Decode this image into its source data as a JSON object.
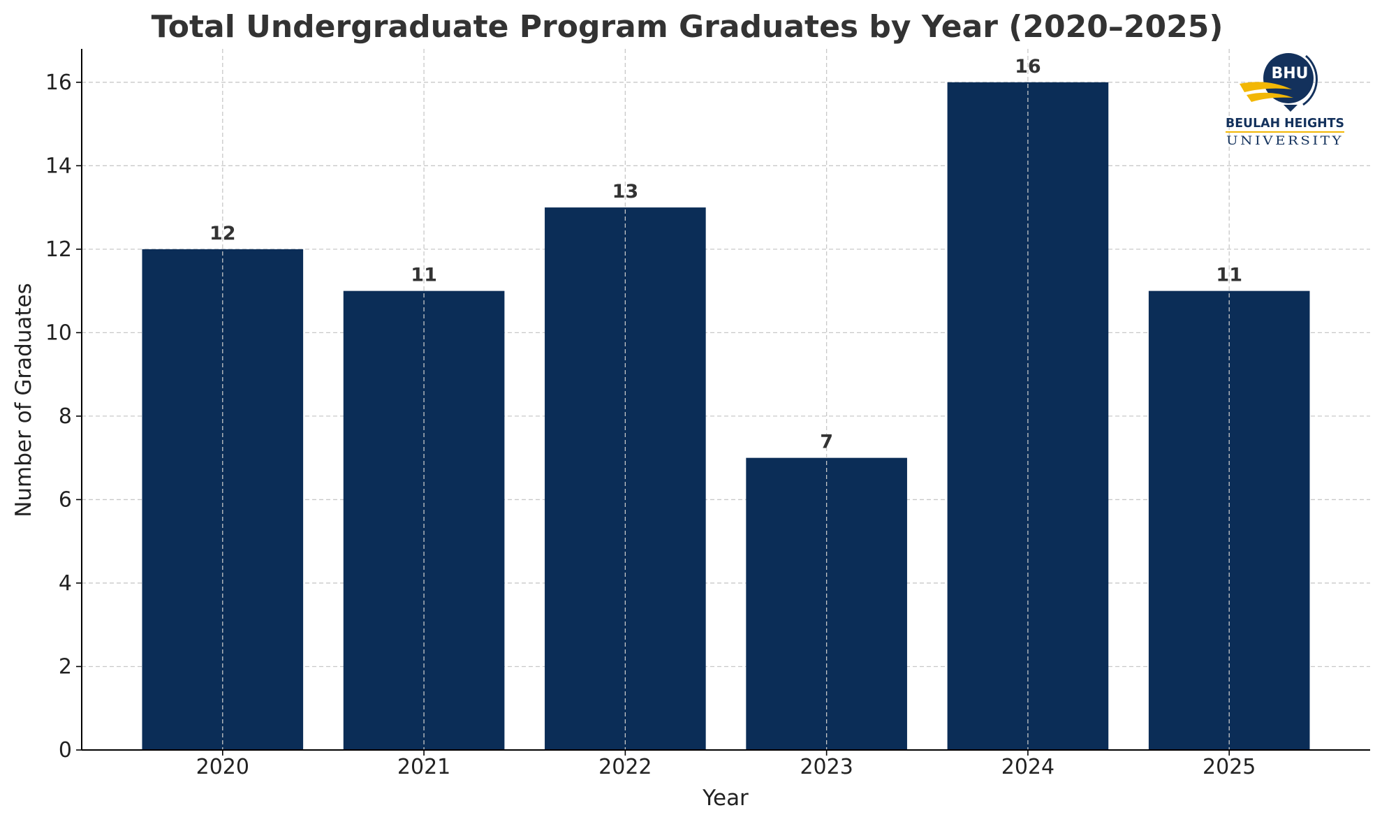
{
  "chart_data": {
    "type": "bar",
    "title": "Total Undergraduate Program Graduates by Year (2020–2025)",
    "xlabel": "Year",
    "ylabel": "Number of Graduates",
    "categories": [
      "2020",
      "2021",
      "2022",
      "2023",
      "2024",
      "2025"
    ],
    "values": [
      12,
      11,
      13,
      7,
      16,
      11
    ],
    "data_labels": [
      "12",
      "11",
      "13",
      "7",
      "16",
      "11"
    ],
    "ylim": [
      0,
      16.8
    ],
    "yticks": [
      0,
      2,
      4,
      6,
      8,
      10,
      12,
      14,
      16
    ],
    "grid": true,
    "bar_color": "#0b2d57"
  },
  "logo": {
    "abbr": "BHU",
    "name": "BEULAH HEIGHTS",
    "sub": "UNIVERSITY",
    "colors": {
      "navy": "#13315c",
      "gold": "#f2b705"
    }
  }
}
